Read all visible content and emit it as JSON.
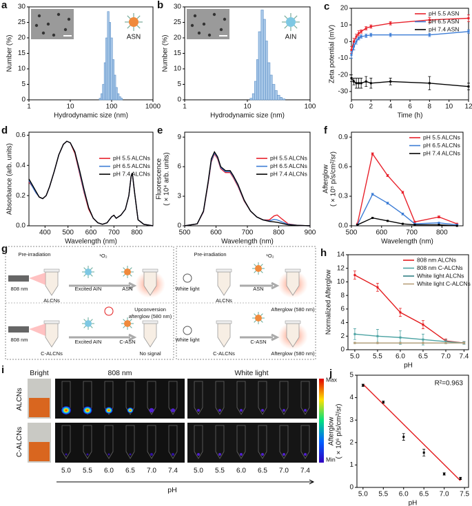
{
  "chart_data": [
    {
      "type": "histogram",
      "label": "a",
      "xscale": "log",
      "xlabel": "Hydrodynamic size (nm)",
      "ylabel": [
        "Number (%)"
      ],
      "bins": [
        50,
        55,
        60,
        66,
        72,
        79,
        87,
        95,
        105,
        115,
        126,
        138,
        152,
        167,
        183
      ],
      "counts": [
        0.5,
        2,
        5,
        12,
        20,
        28.5,
        25,
        20,
        13,
        8,
        4,
        2,
        1,
        0.5
      ],
      "xlim": [
        1,
        1000
      ],
      "xticks": [
        1,
        10,
        100,
        1000
      ],
      "ylim": [
        0,
        30
      ],
      "yticks": [
        0,
        5,
        10,
        15,
        20,
        25,
        30
      ],
      "inset_label": "ASN",
      "color": "#a9c8e8"
    },
    {
      "type": "histogram",
      "label": "b",
      "xscale": "log",
      "xlabel": "Hydrodynamic size (nm)",
      "ylabel": [
        "Number (%)"
      ],
      "bins": [
        11,
        12,
        13,
        14,
        15,
        16.5,
        18,
        19.5,
        21,
        23,
        25,
        27.5,
        30,
        33,
        36,
        40
      ],
      "counts": [
        0.5,
        2,
        6,
        13,
        22,
        29,
        26,
        19,
        12,
        8,
        5,
        3,
        1.5,
        0.8,
        0.3
      ],
      "xlim": [
        1,
        100
      ],
      "xticks": [
        1,
        10,
        100
      ],
      "ylim": [
        0,
        30
      ],
      "yticks": [
        0,
        5,
        10,
        15,
        20,
        25,
        30
      ],
      "inset_label": "AIN",
      "color": "#a9c8e8"
    },
    {
      "type": "line",
      "label": "c",
      "xlabel": "Time (h)",
      "ylabel": [
        "Zeta potential (mV)"
      ],
      "markers": true,
      "legend": "upper right",
      "x": [
        0,
        0.25,
        0.5,
        0.75,
        1,
        1.5,
        2,
        4,
        8,
        12
      ],
      "series": [
        {
          "name": "pH 5.5 ASN",
          "color": "#e8202a",
          "values": [
            -5,
            0,
            3,
            5,
            6,
            8,
            9,
            11,
            13,
            14
          ],
          "errors": [
            2,
            2,
            1.5,
            1.5,
            1,
            1,
            1,
            1,
            1.5,
            2
          ]
        },
        {
          "name": "pH 6.5 ASN",
          "color": "#3a7bd5",
          "values": [
            -8,
            -3,
            0,
            2,
            3,
            3.5,
            4,
            4,
            4,
            6
          ],
          "errors": [
            2,
            2,
            1.5,
            1,
            1,
            1,
            1,
            1,
            1,
            1
          ]
        },
        {
          "name": "pH 7.4 ASN",
          "color": "#000000",
          "values": [
            -22,
            -24,
            -25,
            -25,
            -25,
            -24,
            -25,
            -24,
            -25,
            -27
          ],
          "errors": [
            2,
            2,
            3,
            3,
            3,
            3,
            3,
            2,
            4,
            2
          ]
        }
      ],
      "xlim": [
        0,
        12
      ],
      "xticks": [
        0,
        2,
        4,
        6,
        8,
        10,
        12
      ],
      "ylim": [
        -35,
        20
      ],
      "yticks": [
        -30,
        -20,
        -10,
        0,
        10,
        20
      ]
    },
    {
      "type": "line",
      "label": "d",
      "xlabel": "Wavelength (nm)",
      "ylabel": [
        "Absorbance (arb. units)"
      ],
      "legend": "center right",
      "x": [
        330,
        345,
        360,
        375,
        390,
        405,
        420,
        440,
        460,
        480,
        495,
        510,
        530,
        550,
        570,
        590,
        610,
        630,
        650,
        670,
        690,
        700,
        710,
        730,
        750,
        765,
        775,
        780,
        790,
        805,
        830,
        870
      ],
      "series": [
        {
          "name": "pH 5.5 ALCNs",
          "color": "#e8202a",
          "values": [
            0.29,
            0.26,
            0.22,
            0.19,
            0.18,
            0.2,
            0.26,
            0.36,
            0.47,
            0.54,
            0.56,
            0.55,
            0.48,
            0.35,
            0.22,
            0.11,
            0.05,
            0.02,
            0.01,
            0.02,
            0.06,
            0.07,
            0.05,
            0.07,
            0.11,
            0.2,
            0.33,
            0.35,
            0.22,
            0.04,
            0.01,
            0.0
          ]
        },
        {
          "name": "pH 6.5 ALCNs",
          "color": "#3a7bd5",
          "values": [
            0.3,
            0.26,
            0.22,
            0.19,
            0.18,
            0.2,
            0.26,
            0.36,
            0.47,
            0.54,
            0.56,
            0.55,
            0.49,
            0.36,
            0.23,
            0.12,
            0.05,
            0.02,
            0.01,
            0.02,
            0.06,
            0.07,
            0.05,
            0.07,
            0.11,
            0.2,
            0.33,
            0.35,
            0.22,
            0.04,
            0.01,
            0.0
          ]
        },
        {
          "name": "pH 7.4 ALCNs",
          "color": "#000000",
          "values": [
            0.31,
            0.27,
            0.23,
            0.19,
            0.18,
            0.2,
            0.26,
            0.36,
            0.47,
            0.54,
            0.56,
            0.55,
            0.49,
            0.37,
            0.24,
            0.12,
            0.05,
            0.02,
            0.01,
            0.02,
            0.06,
            0.07,
            0.05,
            0.07,
            0.11,
            0.2,
            0.33,
            0.35,
            0.22,
            0.04,
            0.01,
            0.0
          ]
        }
      ],
      "xlim": [
        330,
        870
      ],
      "xticks": [
        400,
        500,
        600,
        700,
        800
      ],
      "ylim": [
        0,
        0.62
      ],
      "yticks": [
        {
          "value": 0,
          "label": "0.0"
        },
        0.2,
        0.4,
        0.6
      ]
    },
    {
      "type": "line",
      "label": "e",
      "xlabel": "Wavelength (nm)",
      "ylabel": [
        "Fluorescence",
        "( × 10⁴ arb. units)"
      ],
      "legend": "center right",
      "x": [
        500,
        540,
        560,
        575,
        585,
        595,
        605,
        615,
        630,
        645,
        655,
        670,
        690,
        710,
        730,
        750,
        770,
        785,
        795,
        810,
        830,
        860,
        900
      ],
      "series": [
        {
          "name": "pH 5.5 ALCNs",
          "color": "#e8202a",
          "values": [
            0,
            0.2,
            1.4,
            4.3,
            6.5,
            7.3,
            6.8,
            5.8,
            5.4,
            5.4,
            4.9,
            4.0,
            2.5,
            1.5,
            0.9,
            0.6,
            0.6,
            1.0,
            1.1,
            0.7,
            0.2,
            0.05,
            0
          ]
        },
        {
          "name": "pH 6.5 ALCNs",
          "color": "#3a7bd5",
          "values": [
            0,
            0.2,
            1.45,
            4.4,
            6.6,
            7.4,
            6.9,
            5.9,
            5.5,
            5.5,
            5.0,
            4.1,
            2.55,
            1.5,
            0.9,
            0.6,
            0.5,
            0.65,
            0.6,
            0.4,
            0.15,
            0.05,
            0
          ]
        },
        {
          "name": "pH 7.4 ALCNs",
          "color": "#000000",
          "values": [
            0,
            0.2,
            1.5,
            4.5,
            6.8,
            7.5,
            7.0,
            6.0,
            5.6,
            5.6,
            5.1,
            4.2,
            2.6,
            1.5,
            0.9,
            0.6,
            0.45,
            0.4,
            0.35,
            0.25,
            0.1,
            0.05,
            0
          ]
        }
      ],
      "xlim": [
        500,
        900
      ],
      "xticks": [
        500,
        600,
        700,
        800,
        900
      ],
      "ylim": [
        0,
        9.5
      ],
      "yticks": [
        0,
        3,
        6,
        9
      ]
    },
    {
      "type": "line",
      "label": "f",
      "xlabel": "Wavelength (nm)",
      "ylabel": [
        "Afterglow",
        "( × 10⁵ p/s/cm²/sr)"
      ],
      "markers": true,
      "legend": "upper right",
      "x": [
        520,
        570,
        620,
        670,
        710,
        790,
        850
      ],
      "series": [
        {
          "name": "pH 5.5 ALCNs",
          "color": "#e8202a",
          "values": [
            0.02,
            0.73,
            0.51,
            0.34,
            0.04,
            0.09,
            0.02
          ],
          "errors": [
            0,
            0.01,
            0.01,
            0.01,
            0,
            0.01,
            0
          ]
        },
        {
          "name": "pH 6.5 ALCNs",
          "color": "#3a7bd5",
          "values": [
            0.01,
            0.32,
            0.23,
            0.12,
            0.02,
            0.03,
            0.01
          ],
          "errors": [
            0,
            0.01,
            0.01,
            0.01,
            0,
            0,
            0
          ]
        },
        {
          "name": "pH 7.4 ALCNs",
          "color": "#000000",
          "values": [
            0.01,
            0.08,
            0.05,
            0.02,
            0.01,
            0.01,
            0
          ],
          "errors": [
            0,
            0,
            0,
            0,
            0,
            0,
            0
          ]
        }
      ],
      "xlim": [
        500,
        870
      ],
      "xticks": [
        500,
        600,
        700,
        800
      ],
      "ylim": [
        0,
        0.95
      ],
      "yticks": [
        {
          "value": 0,
          "label": "0.0"
        },
        0.3,
        0.6,
        0.9
      ]
    },
    {
      "type": "line",
      "label": "h",
      "xlabel": "pH",
      "ylabel": [
        "Normalized Afterglow"
      ],
      "markers": true,
      "legend": "upper right",
      "x": [
        5.0,
        5.5,
        6.0,
        6.5,
        7.0,
        7.4
      ],
      "series": [
        {
          "name": "808 nm ALCNs",
          "color": "#e31a1c",
          "values": [
            11,
            9.2,
            5.5,
            3.7,
            1.3,
            1
          ],
          "errors": [
            0.6,
            0.6,
            0.6,
            0.6,
            0.3,
            0.2
          ]
        },
        {
          "name": "808 nm C-ALCNs",
          "color": "#4ca3a3",
          "values": [
            2.3,
            2,
            1.8,
            1.5,
            1.2,
            1
          ],
          "errors": [
            0.8,
            1,
            1,
            0.8,
            0.3,
            0.2
          ]
        },
        {
          "name": "White light ALCNs",
          "color": "#2f7f84",
          "values": [
            1,
            1,
            1,
            1,
            1,
            1
          ],
          "errors": [
            0,
            0,
            0,
            0,
            0,
            0
          ]
        },
        {
          "name": "White light C-ALCNs",
          "color": "#b8a07a",
          "values": [
            1,
            1,
            1,
            1,
            1,
            1
          ],
          "errors": [
            0,
            0,
            0,
            0,
            0,
            0
          ]
        }
      ],
      "xlim": [
        4.85,
        7.5
      ],
      "xticks": [
        {
          "value": 5.0,
          "label": "5.0"
        },
        5.5,
        {
          "value": 6.0,
          "label": "6.0"
        },
        6.5,
        {
          "value": 7.0,
          "label": "7.0"
        },
        7.4
      ],
      "ylim": [
        0,
        14
      ],
      "yticks": [
        0,
        2,
        4,
        6,
        8,
        10,
        12,
        14
      ]
    },
    {
      "type": "scatter",
      "label": "j",
      "xlabel": "pH",
      "ylabel": [
        "Afterglow",
        "( × 10⁶ p/s/cm²/sr)"
      ],
      "annotation": "R²=0.963",
      "x": [
        5.0,
        5.5,
        6.0,
        6.5,
        7.0,
        7.4
      ],
      "values": [
        4.55,
        3.8,
        2.25,
        1.55,
        0.6,
        0.4
      ],
      "errors": [
        0.05,
        0.05,
        0.15,
        0.15,
        0.05,
        0.05
      ],
      "fit": {
        "x": [
          5.0,
          7.4
        ],
        "y": [
          4.6,
          0.3
        ],
        "color": "#e31a1c"
      },
      "xlim": [
        4.85,
        7.6
      ],
      "xticks": [
        {
          "value": 5.0,
          "label": "5.0"
        },
        5.5,
        {
          "value": 6.0,
          "label": "6.0"
        },
        6.5,
        {
          "value": 7.0,
          "label": "7.0"
        },
        7.5
      ],
      "ylim": [
        0,
        5
      ],
      "yticks": [
        0,
        1,
        2,
        3,
        4,
        5
      ]
    }
  ],
  "diagram": {
    "label": "g",
    "texts": [
      "Pre-irradiation",
      "¹O₂",
      "808 nm",
      "Excited AIN",
      "ASN",
      "ALCNs",
      "Upconversion",
      "afterglow (580 nm)",
      "808 nm",
      "Excited AIN",
      "C-ASN",
      "C-ALCNs",
      "No signal",
      "Pre-irradiation",
      "¹O₂",
      "White light",
      "ASN",
      "ALCNs",
      "Afterglow (580 nm)",
      "White light",
      "C-ASN",
      "C-ALCNs",
      "Afterglow (580 nm)"
    ]
  },
  "imaging": {
    "label": "i",
    "bright": "Bright",
    "laser": "808 nm",
    "white": "White light",
    "rows": [
      "ALCNs",
      "C-ALCNs"
    ],
    "scale_max": "Max",
    "scale_min": "Min",
    "ph_labels": [
      "5.0",
      "5.5",
      "6.0",
      "6.5",
      "7.0",
      "7.4"
    ],
    "axis": "pH"
  }
}
